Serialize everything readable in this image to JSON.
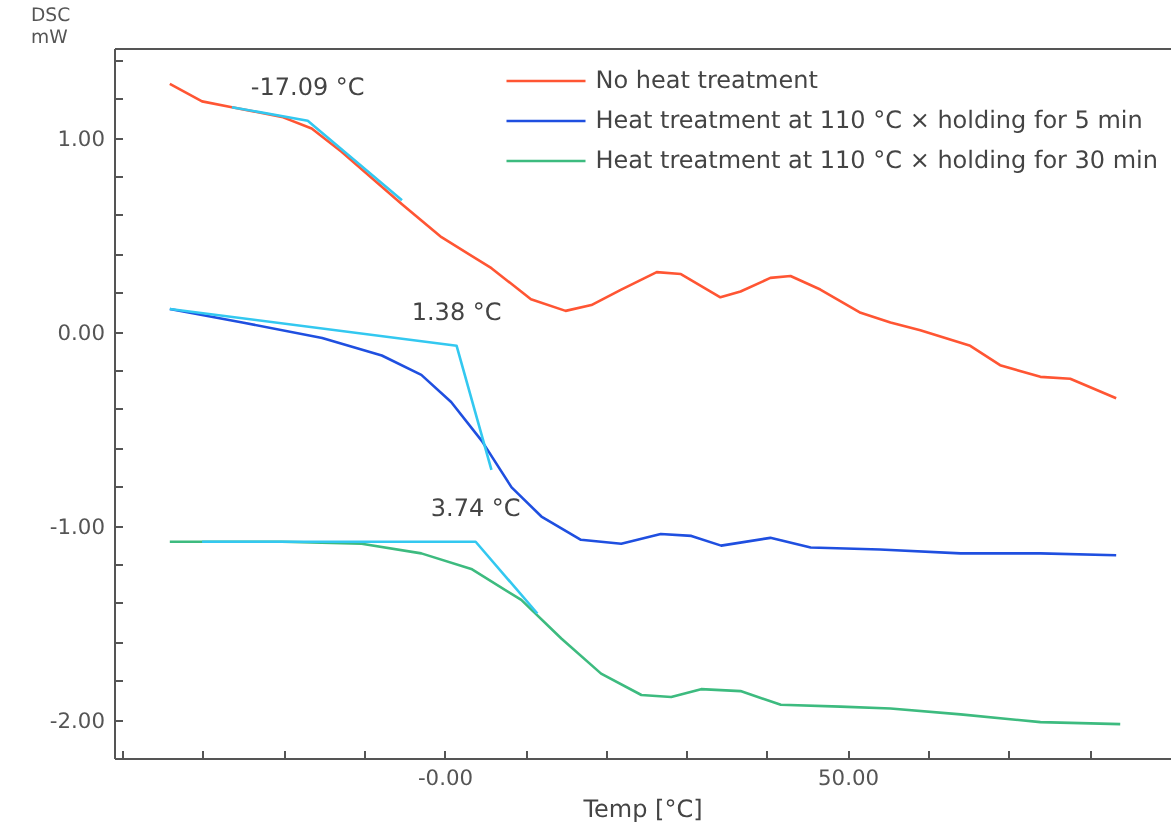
{
  "chart_data": {
    "type": "line",
    "xlabel": "Temp [°C]",
    "ylabel": "DSC\nmW",
    "xlim": [
      -41,
      90
    ],
    "ylim": [
      -2.2,
      1.46
    ],
    "xticks": [
      {
        "value": -40,
        "label": null
      },
      {
        "value": -30,
        "label": null
      },
      {
        "value": -20,
        "label": null
      },
      {
        "value": -10,
        "label": null
      },
      {
        "value": 0,
        "label": "-0.00"
      },
      {
        "value": 10,
        "label": null
      },
      {
        "value": 20,
        "label": null
      },
      {
        "value": 30,
        "label": null
      },
      {
        "value": 40,
        "label": null
      },
      {
        "value": 50,
        "label": "50.00"
      },
      {
        "value": 60,
        "label": null
      },
      {
        "value": 70,
        "label": null
      },
      {
        "value": 80,
        "label": null
      }
    ],
    "yticks": [
      {
        "value": -2,
        "label": "-2.00"
      },
      {
        "value": -1.8,
        "label": null
      },
      {
        "value": -1.6,
        "label": null
      },
      {
        "value": -1.4,
        "label": null
      },
      {
        "value": -1.2,
        "label": null
      },
      {
        "value": -1,
        "label": "-1.00"
      },
      {
        "value": -0.8,
        "label": null
      },
      {
        "value": -0.6,
        "label": null
      },
      {
        "value": -0.4,
        "label": null
      },
      {
        "value": -0.2,
        "label": null
      },
      {
        "value": 0,
        "label": "0.00"
      },
      {
        "value": 0.2,
        "label": null
      },
      {
        "value": 0.4,
        "label": null
      },
      {
        "value": 0.6,
        "label": null
      },
      {
        "value": 0.8,
        "label": null
      },
      {
        "value": 1,
        "label": "1.00"
      },
      {
        "value": 1.2,
        "label": null
      },
      {
        "value": 1.4,
        "label": null
      }
    ],
    "grid": false,
    "legend": "top right",
    "line_style": "solid",
    "marker": "none",
    "series": [
      {
        "name": "No heat treatment",
        "color": "#ff5533",
        "x": [
          -34.2,
          -30.2,
          -26.5,
          -20.3,
          -16.6,
          -12.9,
          -5.4,
          -0.5,
          5.7,
          10.6,
          14.9,
          18.1,
          21.8,
          26.2,
          29.2,
          34.1,
          36.6,
          40.3,
          42.8,
          46.5,
          51.5,
          55.2,
          58.9,
          65.1,
          68.8,
          73.8,
          77.5,
          83.2
        ],
        "values": [
          1.28,
          1.19,
          1.16,
          1.11,
          1.05,
          0.93,
          0.66,
          0.49,
          0.33,
          0.17,
          0.11,
          0.14,
          0.22,
          0.31,
          0.3,
          0.18,
          0.21,
          0.28,
          0.29,
          0.22,
          0.1,
          0.05,
          0.01,
          -0.07,
          -0.17,
          -0.23,
          -0.24,
          -0.34
        ]
      },
      {
        "name": "Heat treatment at 110 °C × holding for 5 min",
        "color": "#1f4fe0",
        "x": [
          -34.2,
          -25.2,
          -15.3,
          -7.9,
          -3.0,
          0.7,
          4.5,
          8.2,
          11.9,
          16.8,
          21.8,
          26.7,
          30.5,
          34.2,
          40.3,
          45.3,
          53.9,
          63.9,
          73.8,
          83.2
        ],
        "values": [
          0.12,
          0.05,
          -0.03,
          -0.12,
          -0.22,
          -0.36,
          -0.56,
          -0.8,
          -0.95,
          -1.07,
          -1.09,
          -1.04,
          -1.05,
          -1.1,
          -1.06,
          -1.11,
          -1.12,
          -1.14,
          -1.14,
          -1.15
        ]
      },
      {
        "name": "Heat treatment at 110 °C × holding for 30 min",
        "color": "#3dbb7f",
        "x": [
          -34.2,
          -20.3,
          -10.4,
          -3.0,
          3.2,
          9.4,
          14.4,
          19.3,
          24.3,
          28.0,
          31.7,
          36.6,
          41.6,
          49.0,
          55.2,
          63.9,
          73.8,
          83.7
        ],
        "values": [
          -1.08,
          -1.08,
          -1.09,
          -1.14,
          -1.22,
          -1.38,
          -1.58,
          -1.76,
          -1.87,
          -1.88,
          -1.84,
          -1.85,
          -1.92,
          -1.93,
          -1.94,
          -1.97,
          -2.01,
          -2.02
        ]
      },
      {
        "color": "#33c8f0",
        "x": [
          -26.5,
          -17.09,
          -5.4
        ],
        "values": [
          1.16,
          1.09,
          0.68
        ]
      },
      {
        "color": "#33c8f0",
        "x": [
          -34.2,
          1.38,
          5.7
        ],
        "values": [
          0.12,
          -0.07,
          -0.71
        ]
      },
      {
        "color": "#33c8f0",
        "x": [
          -30.2,
          3.74,
          11.4
        ],
        "values": [
          -1.08,
          -1.08,
          -1.45
        ]
      }
    ],
    "annotations": [
      {
        "text": "-17.09 °C",
        "x": -17.09,
        "y": 1.09
      },
      {
        "text": "1.38 °C",
        "x": 1.38,
        "y": -0.07
      },
      {
        "text": "3.74 °C",
        "x": 3.74,
        "y": -1.08
      }
    ]
  }
}
